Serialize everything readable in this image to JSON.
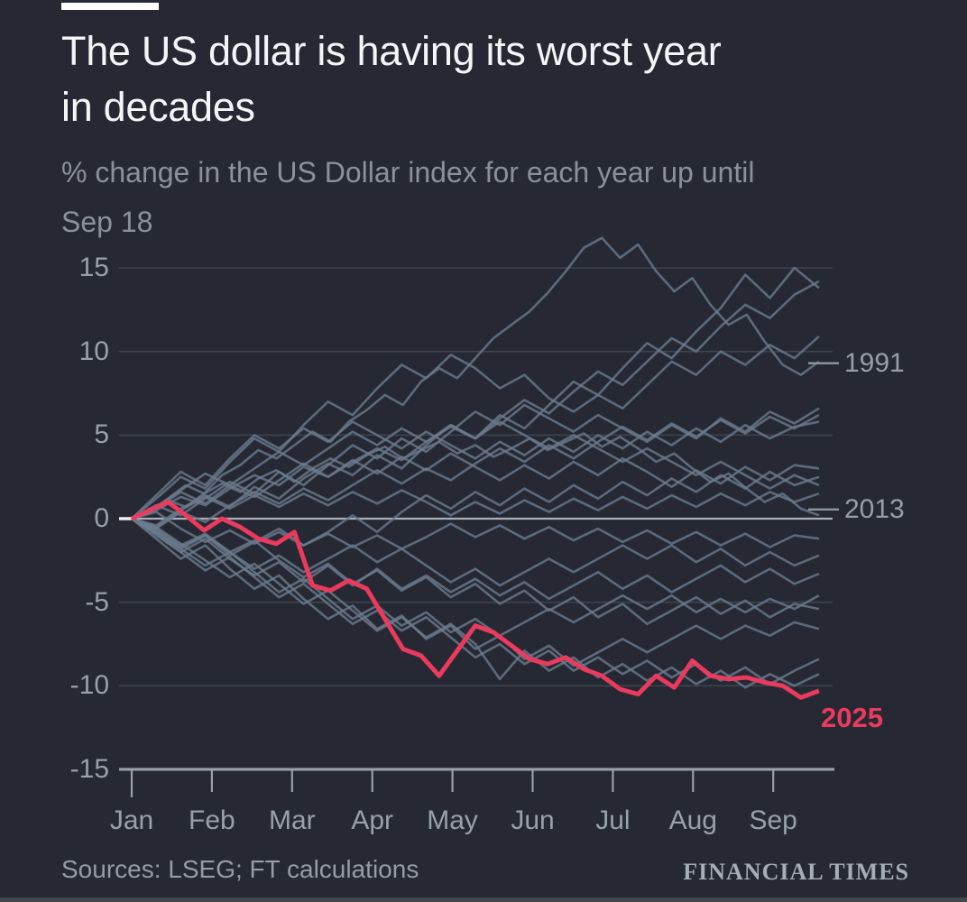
{
  "page": {
    "background": "#262933",
    "bottom_edge_color": "#43474f"
  },
  "header": {
    "title_line1": "The US dollar is having its worst year",
    "title_line2": "in decades",
    "subtitle_line1": "% change in the US Dollar index for each year up until",
    "subtitle_line2": "Sep 18"
  },
  "footer": {
    "sources": "Sources: LSEG; FT calculations",
    "brand": "FINANCIAL TIMES"
  },
  "chart_data": {
    "type": "line",
    "title": "The US dollar is having its worst year in decades",
    "subtitle": "% change in the US Dollar index for each year up until Sep 18",
    "xlabel": "",
    "ylabel": "% change",
    "x_unit": "months_from_jan_1",
    "x_end_month": 8.57,
    "x_tick_labels": [
      "Jan",
      "Feb",
      "Mar",
      "Apr",
      "May",
      "Jun",
      "Jul",
      "Aug",
      "Sep"
    ],
    "y_ticks": [
      15,
      10,
      5,
      0,
      -5,
      -10,
      -15
    ],
    "ylim": [
      -15,
      17
    ],
    "grid": "horizontal",
    "legend_position": "right-edge-labels",
    "colors": {
      "context_line": "#6b7a8d",
      "highlight_line": "#ea3a5e",
      "grid": "#3d424d",
      "zero_line": "#a9afb8",
      "zero_stub": "#eceef0",
      "axis": "#99a0aa",
      "annotation_dash": "#8f96a0"
    },
    "series": [
      {
        "name": "2025",
        "role": "highlight",
        "values": [
          0,
          0.5,
          1.0,
          0.2,
          -0.7,
          0,
          -0.5,
          -1.2,
          -1.5,
          -0.8,
          -4.0,
          -4.3,
          -3.7,
          -4.2,
          -6.0,
          -7.8,
          -8.2,
          -9.4,
          -7.9,
          -6.4,
          -6.8,
          -7.6,
          -8.4,
          -8.7,
          -8.3,
          -9.0,
          -9.4,
          -10.2,
          -10.5,
          -9.4,
          -10.1,
          -8.5,
          -9.4,
          -9.6,
          -9.5,
          -9.8,
          -10.0,
          -10.7,
          -10.3
        ]
      },
      {
        "name": "1991",
        "role": "context-labeled",
        "values": [
          0,
          0.4,
          1.2,
          2.0,
          1.5,
          2.6,
          3.2,
          4.1,
          3.6,
          4.4,
          5.2,
          4.6,
          5.8,
          6.5,
          7.4,
          6.8,
          8.2,
          9.0,
          8.4,
          9.6,
          10.8,
          11.6,
          12.4,
          13.5,
          14.8,
          16.2,
          16.8,
          15.6,
          16.4,
          14.8,
          13.6,
          14.4,
          12.8,
          11.6,
          12.2,
          10.6,
          9.2,
          8.6,
          9.4
        ]
      },
      {
        "name": "2013",
        "role": "context-labeled",
        "values": [
          0,
          0.6,
          1.1,
          0.7,
          1.5,
          2.1,
          1.6,
          2.4,
          2.9,
          2.2,
          3.0,
          3.6,
          3.1,
          3.8,
          4.3,
          3.6,
          4.1,
          4.6,
          3.9,
          4.4,
          3.7,
          4.2,
          4.8,
          4.1,
          4.6,
          5.1,
          4.3,
          4.9,
          4.2,
          3.4,
          3.9,
          3.0,
          2.2,
          2.7,
          1.8,
          1.0,
          1.5,
          0.6,
          0.2
        ]
      },
      {
        "name": "context-1",
        "role": "context",
        "values": [
          0,
          0.5,
          1.3,
          0.8,
          1.8,
          2.6,
          2.0,
          3.1,
          2.5,
          3.4,
          4.2,
          3.5,
          4.6,
          5.5,
          4.8,
          6.0,
          7.1,
          6.3,
          7.6,
          8.8,
          8.0,
          9.4,
          10.8,
          10.0,
          11.5,
          12.8,
          12.0,
          13.4,
          14.2
        ]
      },
      {
        "name": "context-2",
        "role": "context",
        "values": [
          0,
          -0.4,
          0.6,
          1.4,
          0.7,
          1.9,
          1.2,
          2.4,
          3.3,
          2.6,
          3.8,
          3.0,
          4.4,
          5.6,
          4.8,
          6.2,
          5.4,
          6.8,
          8.2,
          7.4,
          9.0,
          10.5,
          9.6,
          11.2,
          12.6,
          14.6,
          13.2,
          15.0,
          13.8
        ]
      },
      {
        "name": "context-3",
        "role": "context",
        "values": [
          0,
          1.2,
          2.5,
          1.8,
          3.4,
          4.8,
          4.0,
          5.6,
          7.0,
          6.2,
          7.8,
          9.2,
          8.4,
          9.8,
          9.0,
          7.8,
          8.6,
          7.2,
          6.4,
          7.4,
          6.6,
          8.0,
          9.4,
          8.6,
          10.0,
          9.2,
          10.4,
          9.6,
          10.9
        ]
      },
      {
        "name": "context-4",
        "role": "context",
        "values": [
          0,
          0.8,
          0.2,
          1.2,
          2.2,
          1.5,
          2.8,
          2.0,
          3.2,
          4.4,
          3.6,
          4.8,
          4.0,
          5.2,
          6.4,
          5.6,
          6.8,
          6.0,
          5.2,
          6.2,
          5.4,
          4.6,
          5.6,
          4.8,
          6.0,
          5.2,
          6.4,
          5.7,
          6.6
        ]
      },
      {
        "name": "context-5",
        "role": "context",
        "values": [
          0,
          -0.6,
          0.4,
          -0.2,
          0.8,
          1.6,
          0.9,
          1.8,
          1.1,
          2.0,
          2.9,
          2.1,
          3.0,
          2.3,
          3.3,
          4.2,
          3.4,
          4.4,
          3.6,
          4.6,
          5.5,
          4.7,
          5.7,
          4.9,
          5.9,
          5.1,
          6.1,
          5.4,
          6.2
        ]
      },
      {
        "name": "context-6",
        "role": "context",
        "values": [
          0,
          1.4,
          2.8,
          2.0,
          3.6,
          5.0,
          4.2,
          5.4,
          4.6,
          5.8,
          5.0,
          4.2,
          5.2,
          4.4,
          3.6,
          4.6,
          3.8,
          4.8,
          4.0,
          5.0,
          4.2,
          5.2,
          4.4,
          5.4,
          4.6,
          5.6,
          4.8,
          5.5,
          5.8
        ]
      },
      {
        "name": "context-7",
        "role": "context",
        "values": [
          0,
          0.6,
          1.6,
          0.9,
          2.0,
          1.3,
          2.3,
          3.3,
          2.5,
          3.5,
          2.7,
          3.7,
          2.9,
          3.9,
          3.1,
          2.3,
          3.2,
          2.4,
          3.4,
          2.6,
          3.6,
          2.8,
          1.9,
          2.9,
          2.1,
          3.1,
          2.3,
          3.2,
          3.0
        ]
      },
      {
        "name": "context-8",
        "role": "context",
        "values": [
          0,
          -0.8,
          -1.8,
          -1.0,
          -2.2,
          -1.4,
          -0.6,
          -1.6,
          -0.8,
          0.2,
          -0.8,
          0.4,
          1.4,
          0.6,
          1.6,
          0.8,
          1.8,
          1.0,
          2.0,
          1.2,
          2.2,
          1.4,
          2.4,
          1.6,
          2.6,
          1.8,
          2.8,
          2.0,
          2.5
        ]
      },
      {
        "name": "context-9",
        "role": "context",
        "values": [
          0,
          0.7,
          1.7,
          2.7,
          2.0,
          3.0,
          4.0,
          3.2,
          4.2,
          5.2,
          4.4,
          5.4,
          4.6,
          5.6,
          4.8,
          5.8,
          5.0,
          4.2,
          5.0,
          4.2,
          3.4,
          4.2,
          3.4,
          2.6,
          3.4,
          2.6,
          1.8,
          2.6,
          2.0
        ]
      },
      {
        "name": "context-10",
        "role": "context",
        "values": [
          0,
          -0.5,
          0.5,
          1.3,
          0.6,
          1.4,
          0.7,
          1.5,
          0.8,
          1.6,
          0.9,
          1.7,
          1.0,
          0.2,
          1.0,
          0.3,
          1.1,
          0.4,
          1.2,
          0.5,
          1.3,
          0.6,
          1.4,
          0.7,
          1.5,
          0.8,
          1.6,
          1.0,
          1.5
        ]
      },
      {
        "name": "context-11",
        "role": "context",
        "values": [
          0,
          0.4,
          -0.6,
          -1.4,
          -0.7,
          -1.5,
          -0.8,
          -1.6,
          -0.9,
          -1.7,
          -1.0,
          -1.8,
          -1.1,
          -0.3,
          -1.1,
          -0.4,
          -1.2,
          -0.5,
          -1.3,
          -0.6,
          -1.4,
          -0.7,
          -1.5,
          -0.8,
          -1.6,
          -0.9,
          -1.7,
          -1.0,
          -1.2
        ]
      },
      {
        "name": "context-12",
        "role": "context",
        "values": [
          0,
          -0.7,
          -1.7,
          -1.0,
          -2.0,
          -3.0,
          -2.2,
          -3.2,
          -2.4,
          -1.6,
          -2.6,
          -1.8,
          -2.8,
          -3.8,
          -3.0,
          -4.0,
          -3.2,
          -2.4,
          -3.2,
          -2.4,
          -1.6,
          -2.4,
          -1.6,
          -2.6,
          -1.8,
          -2.8,
          -2.0,
          -2.8,
          -2.2
        ]
      },
      {
        "name": "context-13",
        "role": "context",
        "values": [
          0,
          -1.0,
          -2.0,
          -1.2,
          -2.4,
          -3.4,
          -2.6,
          -3.8,
          -2.8,
          -4.0,
          -3.0,
          -4.2,
          -3.4,
          -4.4,
          -3.6,
          -4.6,
          -3.8,
          -4.8,
          -4.0,
          -3.2,
          -4.2,
          -3.4,
          -4.4,
          -3.6,
          -2.8,
          -3.8,
          -3.0,
          -3.9,
          -3.3
        ]
      },
      {
        "name": "context-14",
        "role": "context",
        "values": [
          0,
          -0.8,
          -1.8,
          -2.8,
          -2.0,
          -3.2,
          -4.4,
          -3.6,
          -4.8,
          -6.0,
          -5.2,
          -6.4,
          -5.6,
          -6.8,
          -6.0,
          -7.0,
          -6.2,
          -5.4,
          -6.2,
          -5.4,
          -4.6,
          -5.4,
          -4.6,
          -5.6,
          -4.8,
          -5.6,
          -4.8,
          -5.4,
          -4.6
        ]
      },
      {
        "name": "context-15",
        "role": "context",
        "values": [
          0,
          -0.6,
          -1.6,
          -0.9,
          -2.0,
          -1.3,
          -2.5,
          -3.5,
          -2.7,
          -3.9,
          -3.1,
          -4.3,
          -3.5,
          -4.7,
          -3.9,
          -5.1,
          -4.3,
          -5.5,
          -4.7,
          -5.9,
          -5.1,
          -6.3,
          -5.5,
          -4.7,
          -5.7,
          -4.9,
          -5.9,
          -5.1,
          -5.4
        ]
      },
      {
        "name": "context-16",
        "role": "context",
        "values": [
          0,
          -1.2,
          -2.4,
          -1.6,
          -3.0,
          -4.2,
          -3.4,
          -4.8,
          -6.0,
          -5.2,
          -6.6,
          -5.8,
          -7.2,
          -6.4,
          -7.8,
          -7.0,
          -8.4,
          -7.6,
          -8.8,
          -8.0,
          -7.2,
          -8.0,
          -7.2,
          -6.4,
          -7.2,
          -6.4,
          -7.0,
          -6.2,
          -6.6
        ]
      },
      {
        "name": "context-17",
        "role": "context",
        "values": [
          0,
          -0.9,
          -2.0,
          -3.1,
          -2.3,
          -3.5,
          -4.7,
          -3.9,
          -5.1,
          -6.3,
          -5.5,
          -6.7,
          -5.9,
          -7.1,
          -8.3,
          -7.5,
          -8.7,
          -7.9,
          -9.1,
          -8.3,
          -9.3,
          -8.5,
          -9.5,
          -8.7,
          -9.7,
          -8.9,
          -9.9,
          -9.1,
          -8.4
        ]
      },
      {
        "name": "context-18",
        "role": "context",
        "values": [
          0,
          -0.5,
          -1.5,
          -2.5,
          -3.5,
          -2.7,
          -3.9,
          -5.1,
          -4.3,
          -5.5,
          -6.7,
          -5.9,
          -7.1,
          -6.3,
          -7.5,
          -9.6,
          -7.9,
          -9.1,
          -8.3,
          -9.5,
          -8.7,
          -9.7,
          -8.9,
          -9.9,
          -9.1,
          -10.1,
          -9.3,
          -10.0,
          -9.3
        ]
      }
    ],
    "annotations": [
      {
        "text": "1991",
        "y": 9.3,
        "style": "dash"
      },
      {
        "text": "2013",
        "y": 0.55,
        "style": "dash"
      },
      {
        "text": "2025",
        "y": -11.9,
        "style": "highlight"
      }
    ]
  }
}
